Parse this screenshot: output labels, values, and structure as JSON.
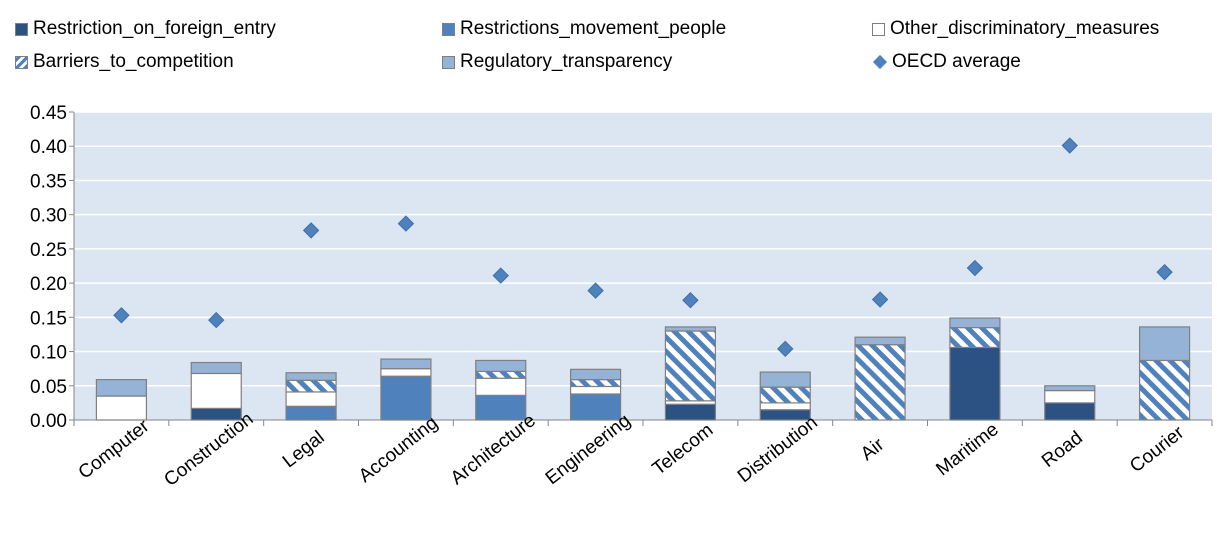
{
  "chart_data": {
    "type": "bar",
    "stacked": true,
    "categories": [
      "Computer",
      "Construction",
      "Legal",
      "Accounting",
      "Architecture",
      "Engineering",
      "Telecom",
      "Distribution",
      "Air",
      "Maritime",
      "Road",
      "Courier"
    ],
    "series": [
      {
        "name": "Restriction_on_foreign_entry",
        "color": "#2b5283",
        "pattern": "solid",
        "values": [
          0.0,
          0.017,
          0.0,
          0.0,
          0.0,
          0.0,
          0.023,
          0.015,
          0.0,
          0.106,
          0.025,
          0.0
        ]
      },
      {
        "name": "Restrictions_movement_people",
        "color": "#4f81bd",
        "pattern": "solid",
        "values": [
          0.0,
          0.0,
          0.02,
          0.064,
          0.036,
          0.038,
          0.0,
          0.0,
          0.0,
          0.0,
          0.0,
          0.0
        ]
      },
      {
        "name": "Other_discriminatory_measures",
        "color": "#ffffff",
        "pattern": "solid",
        "values": [
          0.035,
          0.051,
          0.021,
          0.011,
          0.025,
          0.011,
          0.005,
          0.01,
          0.0,
          0.0,
          0.018,
          0.0
        ]
      },
      {
        "name": "Barriers_to_competition",
        "color": "#4f81bd",
        "pattern": "hatch",
        "values": [
          0.0,
          0.0,
          0.017,
          0.0,
          0.01,
          0.01,
          0.102,
          0.023,
          0.11,
          0.029,
          0.0,
          0.087
        ]
      },
      {
        "name": "Regulatory_transparency",
        "color": "#95b3d7",
        "pattern": "solid",
        "values": [
          0.024,
          0.016,
          0.011,
          0.014,
          0.016,
          0.015,
          0.006,
          0.022,
          0.011,
          0.014,
          0.007,
          0.049
        ]
      }
    ],
    "oecd_average": {
      "name": "OECD average",
      "color": "#4f81bd",
      "marker": "diamond",
      "values": [
        0.153,
        0.146,
        0.277,
        0.287,
        0.211,
        0.189,
        0.175,
        0.104,
        0.176,
        0.222,
        0.401,
        0.216
      ]
    },
    "ylim": [
      0,
      0.45
    ],
    "yticks": [
      "0.00",
      "0.05",
      "0.10",
      "0.15",
      "0.20",
      "0.25",
      "0.30",
      "0.35",
      "0.40",
      "0.45"
    ],
    "grid": true,
    "plot_background": "#dce6f2",
    "legend_position": "top",
    "title": "",
    "xlabel": "",
    "ylabel": ""
  }
}
